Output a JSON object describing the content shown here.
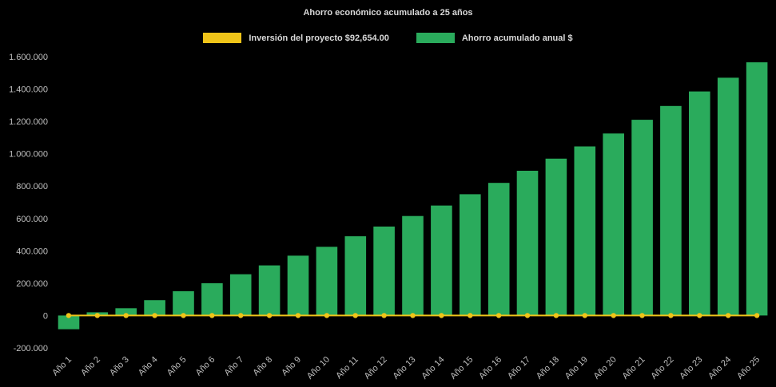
{
  "colors": {
    "background": "#000000",
    "title_text": "#d9d9d9",
    "axis_text": "#bfbfbf",
    "bar_green": "#2aab5c",
    "line_yellow": "#f0c419"
  },
  "legend": [
    {
      "label": "Inversión del proyecto $92,654.00",
      "color": "#f0c419"
    },
    {
      "label": "Ahorro acumulado anual $",
      "color": "#2aab5c"
    }
  ],
  "chart_data": {
    "type": "bar",
    "title": "Ahorro económico acumulado a 25 años",
    "xlabel": "",
    "ylabel": "",
    "grid": false,
    "legend_position": "top",
    "ylim": [
      -200000,
      1600000
    ],
    "ytick_interval": 200000,
    "categories": [
      "Año 1",
      "Año 2",
      "Año 3",
      "Año 4",
      "Año 5",
      "Año 6",
      "Año 7",
      "Año 8",
      "Año 9",
      "Año 10",
      "Año 11",
      "Año 12",
      "Año 13",
      "Año 14",
      "Año 15",
      "Año 16",
      "Año 17",
      "Año 18",
      "Año 19",
      "Año 20",
      "Año 21",
      "Año 22",
      "Año 23",
      "Año 24",
      "Año 25"
    ],
    "series": [
      {
        "name": "Ahorro acumulado anual $",
        "type": "bar",
        "color": "#2aab5c",
        "values": [
          -85000,
          20000,
          45000,
          95000,
          150000,
          200000,
          255000,
          310000,
          370000,
          425000,
          490000,
          550000,
          615000,
          680000,
          750000,
          820000,
          895000,
          970000,
          1045000,
          1125000,
          1210000,
          1295000,
          1385000,
          1470000,
          1565000
        ]
      },
      {
        "name": "Inversión del proyecto $92,654.00",
        "type": "line",
        "color": "#f0c419",
        "values": [
          0,
          0,
          0,
          0,
          0,
          0,
          0,
          0,
          0,
          0,
          0,
          0,
          0,
          0,
          0,
          0,
          0,
          0,
          0,
          0,
          0,
          0,
          0,
          0,
          0
        ]
      }
    ]
  }
}
